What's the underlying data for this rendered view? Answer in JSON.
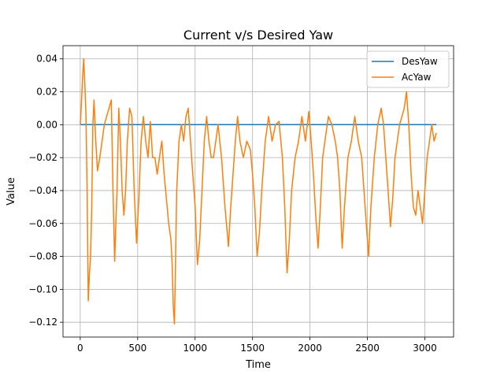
{
  "chart_data": {
    "type": "line",
    "title": "Current v/s Desired Yaw",
    "xlabel": "Time",
    "ylabel": "Value",
    "xlim": [
      -150,
      3250
    ],
    "ylim": [
      -0.129,
      0.048
    ],
    "xticks": [
      0,
      500,
      1000,
      1500,
      2000,
      2500,
      3000
    ],
    "xtick_labels": [
      "0",
      "500",
      "1000",
      "1500",
      "2000",
      "2500",
      "3000"
    ],
    "yticks": [
      0.04,
      0.02,
      0.0,
      -0.02,
      -0.04,
      -0.06,
      -0.08,
      -0.1,
      -0.12
    ],
    "ytick_labels": [
      "0.04",
      "0.02",
      "0.00",
      "−0.02",
      "−0.04",
      "−0.06",
      "−0.08",
      "−0.10",
      "−0.12"
    ],
    "grid": true,
    "legend_position": "top-right",
    "series": [
      {
        "name": "DesYaw",
        "color": "#1f77b4",
        "x": [
          0,
          3100
        ],
        "y": [
          0.0,
          0.0
        ]
      },
      {
        "name": "AcYaw",
        "color": "#ff7f0e",
        "x": [
          0,
          10,
          20,
          30,
          40,
          50,
          60,
          70,
          80,
          90,
          100,
          110,
          120,
          135,
          150,
          170,
          190,
          210,
          230,
          250,
          270,
          285,
          300,
          310,
          320,
          335,
          350,
          365,
          380,
          395,
          410,
          430,
          450,
          470,
          490,
          510,
          530,
          550,
          570,
          590,
          610,
          630,
          650,
          670,
          690,
          710,
          730,
          750,
          770,
          790,
          800,
          810,
          820,
          830,
          840,
          860,
          880,
          900,
          920,
          940,
          960,
          980,
          1000,
          1020,
          1040,
          1060,
          1080,
          1100,
          1120,
          1140,
          1160,
          1180,
          1200,
          1230,
          1260,
          1290,
          1310,
          1330,
          1350,
          1370,
          1390,
          1420,
          1450,
          1480,
          1500,
          1520,
          1540,
          1560,
          1580,
          1610,
          1640,
          1670,
          1700,
          1730,
          1760,
          1780,
          1800,
          1820,
          1840,
          1870,
          1900,
          1930,
          1960,
          1990,
          2010,
          2030,
          2050,
          2070,
          2090,
          2110,
          2130,
          2160,
          2190,
          2220,
          2240,
          2260,
          2280,
          2300,
          2330,
          2360,
          2390,
          2420,
          2450,
          2470,
          2490,
          2510,
          2530,
          2560,
          2590,
          2620,
          2640,
          2660,
          2680,
          2700,
          2720,
          2740,
          2760,
          2780,
          2800,
          2820,
          2840,
          2860,
          2880,
          2900,
          2920,
          2940,
          2960,
          2980,
          3000,
          3020,
          3040,
          3060,
          3080,
          3100
        ],
        "y": [
          0.0,
          0.012,
          0.028,
          0.04,
          0.025,
          0.005,
          -0.04,
          -0.107,
          -0.09,
          -0.08,
          -0.05,
          0.0,
          0.015,
          -0.01,
          -0.028,
          -0.02,
          -0.01,
          0.0,
          0.005,
          0.01,
          0.015,
          -0.04,
          -0.083,
          -0.06,
          -0.04,
          0.01,
          -0.01,
          -0.04,
          -0.055,
          -0.04,
          -0.01,
          0.01,
          0.005,
          -0.04,
          -0.072,
          -0.045,
          -0.01,
          0.005,
          -0.01,
          -0.02,
          0.002,
          -0.02,
          -0.02,
          -0.03,
          -0.02,
          -0.01,
          -0.03,
          -0.045,
          -0.06,
          -0.07,
          -0.085,
          -0.11,
          -0.121,
          -0.08,
          -0.04,
          -0.01,
          0.0,
          -0.01,
          0.005,
          0.01,
          -0.01,
          -0.03,
          -0.05,
          -0.085,
          -0.07,
          -0.04,
          -0.01,
          0.005,
          -0.01,
          -0.02,
          -0.02,
          -0.01,
          0.0,
          -0.02,
          -0.05,
          -0.074,
          -0.05,
          -0.03,
          -0.01,
          0.005,
          -0.01,
          -0.02,
          -0.01,
          -0.015,
          -0.03,
          -0.05,
          -0.08,
          -0.065,
          -0.04,
          -0.01,
          0.005,
          -0.01,
          0.0,
          0.002,
          -0.02,
          -0.05,
          -0.09,
          -0.07,
          -0.04,
          -0.02,
          -0.01,
          0.005,
          -0.01,
          0.008,
          -0.01,
          -0.03,
          -0.055,
          -0.075,
          -0.05,
          -0.02,
          -0.01,
          0.005,
          0.0,
          -0.01,
          -0.02,
          -0.04,
          -0.075,
          -0.05,
          -0.02,
          -0.01,
          0.005,
          -0.01,
          -0.02,
          -0.04,
          -0.06,
          -0.08,
          -0.05,
          -0.02,
          0.0,
          0.01,
          0.0,
          -0.02,
          -0.04,
          -0.062,
          -0.045,
          -0.02,
          -0.01,
          0.0,
          0.005,
          0.01,
          0.02,
          0.0,
          -0.03,
          -0.05,
          -0.055,
          -0.04,
          -0.05,
          -0.06,
          -0.04,
          -0.02,
          -0.01,
          0.0,
          -0.01,
          -0.005
        ]
      }
    ]
  }
}
